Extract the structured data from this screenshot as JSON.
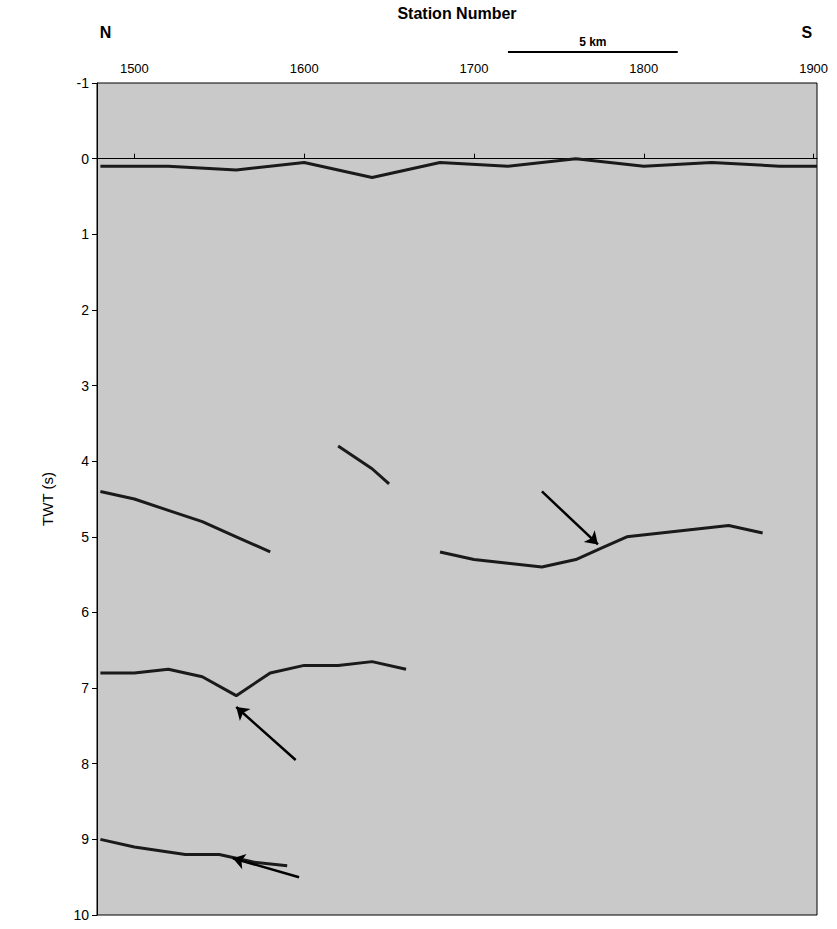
{
  "chart_data": {
    "type": "line",
    "x_label": "Station Number",
    "y_label": "TWT (s)",
    "xlim": [
      1478,
      1902
    ],
    "xticks": [
      1500,
      1600,
      1700,
      1800,
      1900
    ],
    "ylim": [
      -1,
      10
    ],
    "yticks": [
      -1,
      0,
      1,
      2,
      3,
      4,
      5,
      6,
      7,
      8,
      9,
      10
    ],
    "grid": false,
    "color": "#1a1a1a",
    "annotations": [
      {
        "text": "N",
        "x": 1483
      },
      {
        "text": "S",
        "x": 1896
      }
    ],
    "scale_bar": {
      "label": "5 km",
      "from": 1720,
      "to": 1820
    },
    "reflectors": [
      {
        "x": [
          1480,
          1520,
          1560,
          1600,
          1640,
          1680,
          1720,
          1760,
          1800,
          1840,
          1880,
          1902
        ],
        "y": [
          0.1,
          0.1,
          0.15,
          0.05,
          0.25,
          0.05,
          0.1,
          0.0,
          0.1,
          0.05,
          0.1,
          0.1
        ]
      },
      {
        "x": [
          1480,
          1500,
          1520,
          1540,
          1560,
          1580
        ],
        "y": [
          4.4,
          4.5,
          4.65,
          4.8,
          5.0,
          5.2
        ]
      },
      {
        "x": [
          1620,
          1640,
          1650
        ],
        "y": [
          3.8,
          4.1,
          4.3
        ]
      },
      {
        "x": [
          1680,
          1700,
          1720,
          1740,
          1760,
          1775,
          1790,
          1810,
          1830,
          1850,
          1870
        ],
        "y": [
          5.2,
          5.3,
          5.35,
          5.4,
          5.3,
          5.15,
          5.0,
          4.95,
          4.9,
          4.85,
          4.95
        ]
      },
      {
        "x": [
          1480,
          1500,
          1520,
          1540,
          1560,
          1580,
          1600,
          1620,
          1640,
          1660
        ],
        "y": [
          6.8,
          6.8,
          6.75,
          6.85,
          7.1,
          6.8,
          6.7,
          6.7,
          6.65,
          6.75
        ]
      },
      {
        "x": [
          1480,
          1500,
          1530,
          1550,
          1570,
          1590
        ],
        "y": [
          9.0,
          9.1,
          9.2,
          9.2,
          9.3,
          9.35
        ]
      }
    ],
    "arrows": [
      {
        "from": [
          1740,
          4.4
        ],
        "to": [
          1773,
          5.1
        ]
      },
      {
        "from": [
          1595,
          7.95
        ],
        "to": [
          1560,
          7.25
        ]
      },
      {
        "from": [
          1597,
          9.5
        ],
        "to": [
          1558,
          9.25
        ]
      }
    ]
  }
}
